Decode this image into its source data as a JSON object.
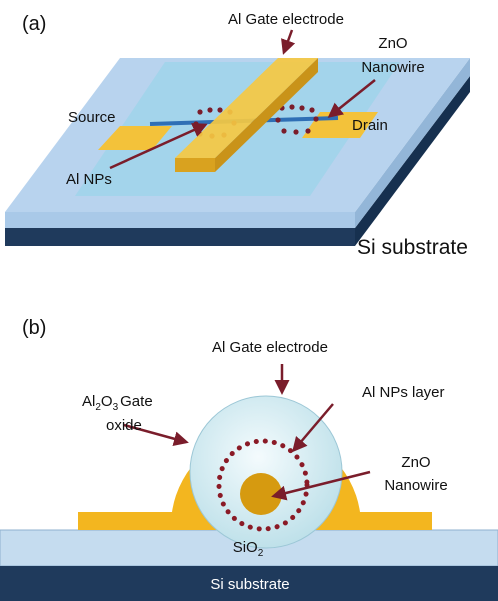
{
  "panel_a": {
    "label": "(a)",
    "gate_label": "Al Gate electrode",
    "nanowire_label": [
      "ZnO",
      "Nanowire"
    ],
    "source_label": "Source",
    "drain_label": "Drain",
    "nps_label": "Al NPs",
    "substrate_label": "Si substrate"
  },
  "panel_b": {
    "label": "(b)",
    "gate_label": "Al Gate electrode",
    "oxide_label": {
      "line1": [
        "Al",
        "2",
        "O",
        "3",
        "Gate"
      ],
      "line2": "oxide"
    },
    "nps_label": "Al NPs layer",
    "nanowire_label": [
      "ZnO",
      "Nanowire"
    ],
    "sio2_label": [
      "SiO",
      "2"
    ],
    "substrate_label": "Si substrate"
  }
}
